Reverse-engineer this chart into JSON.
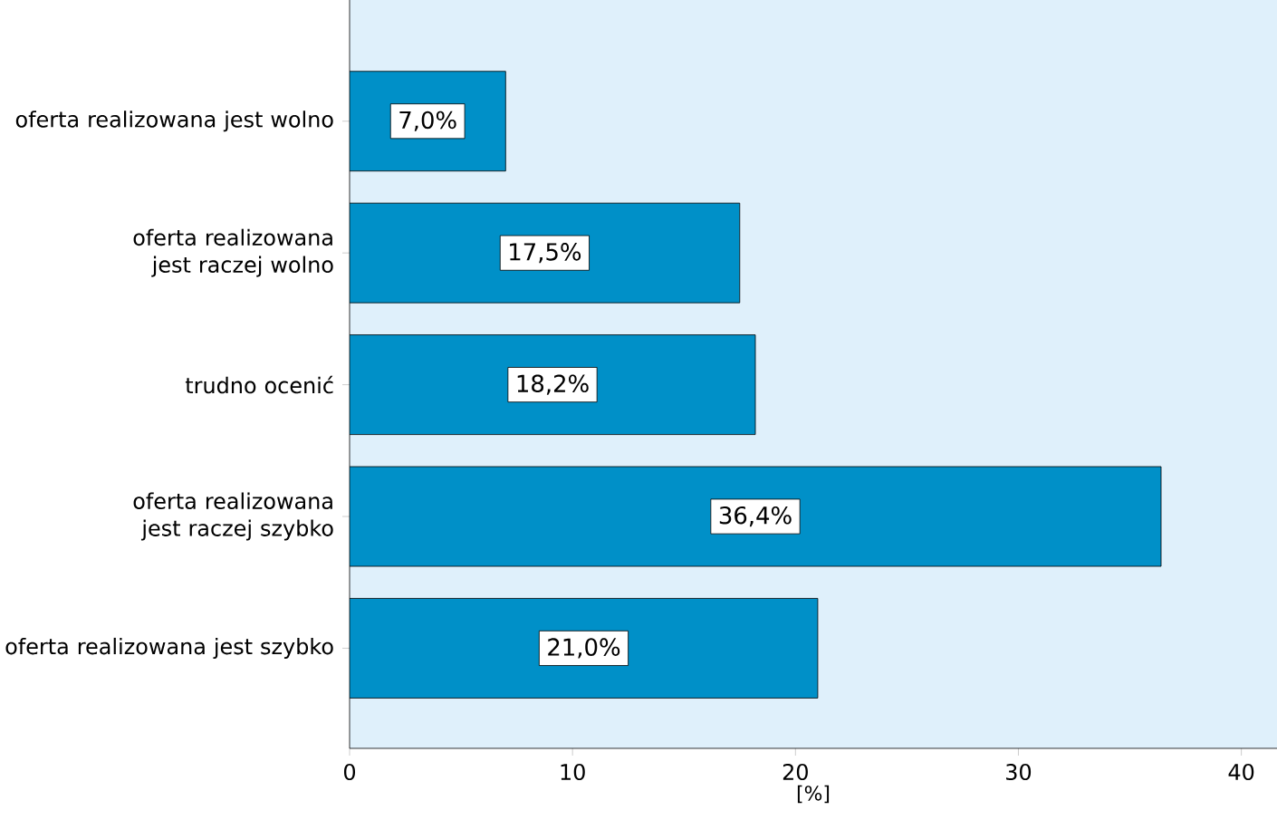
{
  "chart_data": {
    "type": "bar",
    "orientation": "horizontal",
    "categories": [
      "oferta realizowana jest wolno",
      "oferta realizowana jest raczej wolno",
      "trudno ocenić",
      "oferta realizowana jest raczej szybko",
      "oferta realizowana jest szybko"
    ],
    "values": [
      7.0,
      17.5,
      18.2,
      36.4,
      21.0
    ],
    "value_labels": [
      "7,0%",
      "17,5%",
      "18,2%",
      "36,4%",
      "21,0%"
    ],
    "color": "#0090c8",
    "xlim": [
      0,
      41.6
    ],
    "xticks": [
      0,
      10,
      20,
      30,
      40
    ],
    "xlabel": "[%]",
    "grid": false
  }
}
